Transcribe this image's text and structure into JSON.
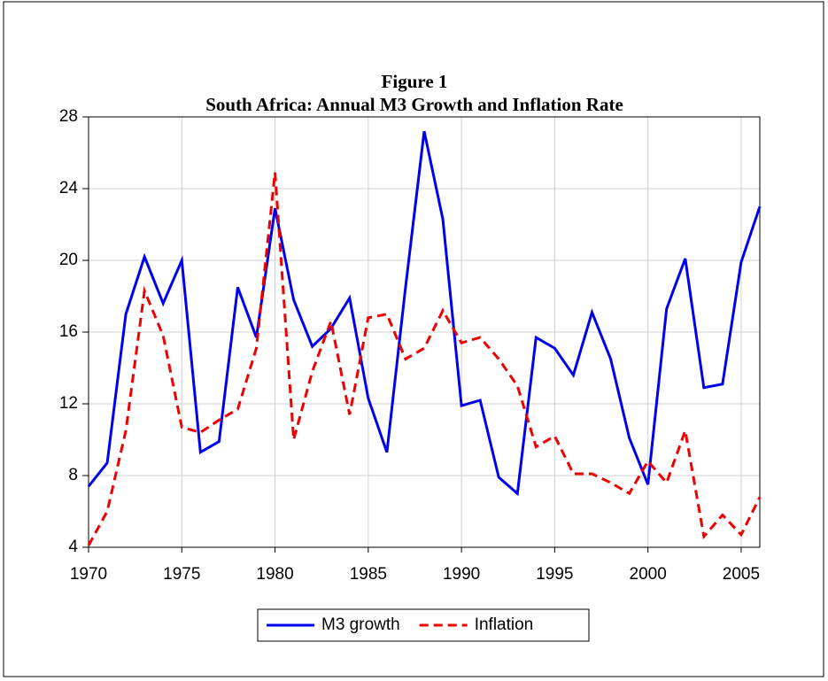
{
  "chart_data": {
    "type": "line",
    "title": "Figure 1",
    "subtitle": "South Africa: Annual  M3 Growth and Inflation Rate",
    "x": [
      1970,
      1971,
      1972,
      1973,
      1974,
      1975,
      1976,
      1977,
      1978,
      1979,
      1980,
      1981,
      1982,
      1983,
      1984,
      1985,
      1986,
      1987,
      1988,
      1989,
      1990,
      1991,
      1992,
      1993,
      1994,
      1995,
      1996,
      1997,
      1998,
      1999,
      2000,
      2001,
      2002,
      2003,
      2004,
      2005,
      2006
    ],
    "series": [
      {
        "name": "M3 growth",
        "color": "#0000ee",
        "style": "solid",
        "values": [
          7.4,
          8.7,
          17.0,
          20.2,
          17.6,
          20.0,
          9.3,
          9.9,
          18.5,
          15.7,
          22.9,
          17.8,
          15.2,
          16.2,
          17.9,
          12.3,
          9.3,
          18.5,
          27.2,
          22.3,
          11.9,
          12.2,
          7.9,
          7.0,
          15.7,
          15.1,
          13.6,
          17.1,
          14.5,
          10.1,
          7.5,
          17.3,
          20.1,
          12.9,
          13.1,
          19.9,
          23.0
        ]
      },
      {
        "name": "Inflation",
        "color": "#ee0000",
        "style": "dashed",
        "values": [
          4.1,
          6.0,
          10.5,
          18.3,
          15.8,
          10.7,
          10.4,
          11.1,
          11.7,
          15.1,
          24.9,
          10.0,
          13.8,
          16.6,
          11.4,
          16.8,
          17.0,
          14.5,
          15.1,
          17.2,
          15.4,
          15.7,
          14.5,
          13.0,
          9.6,
          10.2,
          8.1,
          8.1,
          7.6,
          7.0,
          8.8,
          7.6,
          10.5,
          4.6,
          5.8,
          4.7,
          6.8
        ]
      }
    ],
    "xlim": [
      1970,
      2006
    ],
    "xticks": [
      1970,
      1975,
      1980,
      1985,
      1990,
      1995,
      2000,
      2005
    ],
    "ylim": [
      4,
      28
    ],
    "yticks": [
      4,
      8,
      12,
      16,
      20,
      24,
      28
    ],
    "grid": true,
    "legend": "bottom"
  }
}
